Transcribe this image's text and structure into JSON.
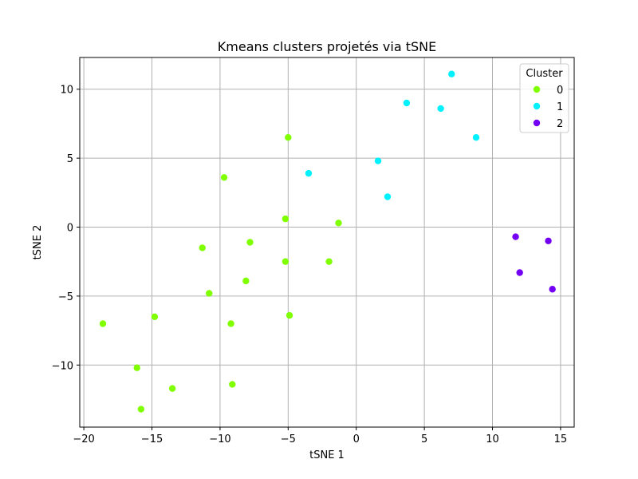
{
  "chart_data": {
    "type": "scatter",
    "title": "Kmeans clusters projetés via tSNE",
    "xlabel": "tSNE 1",
    "ylabel": "tSNE 2",
    "xlim": [
      -20.3,
      16.0
    ],
    "ylim": [
      -14.5,
      12.3
    ],
    "xticks": [
      -20,
      -15,
      -10,
      -5,
      0,
      5,
      10,
      15
    ],
    "yticks": [
      -10,
      -5,
      0,
      5,
      10
    ],
    "grid": true,
    "legend": {
      "title": "Cluster",
      "placement": "top-right"
    },
    "series": [
      {
        "name": "0",
        "color": "#80ff00",
        "points": [
          [
            -5.0,
            6.5
          ],
          [
            -9.7,
            3.6
          ],
          [
            -5.2,
            0.6
          ],
          [
            -1.3,
            0.3
          ],
          [
            -7.8,
            -1.1
          ],
          [
            -11.3,
            -1.5
          ],
          [
            -5.2,
            -2.5
          ],
          [
            -2.0,
            -2.5
          ],
          [
            -8.1,
            -3.9
          ],
          [
            -10.8,
            -4.8
          ],
          [
            -14.8,
            -6.5
          ],
          [
            -4.9,
            -6.4
          ],
          [
            -9.2,
            -7.0
          ],
          [
            -18.6,
            -7.0
          ],
          [
            -16.1,
            -10.2
          ],
          [
            -13.5,
            -11.7
          ],
          [
            -9.1,
            -11.4
          ],
          [
            -15.8,
            -13.2
          ]
        ]
      },
      {
        "name": "1",
        "color": "#00f2ff",
        "points": [
          [
            7.0,
            11.1
          ],
          [
            3.7,
            9.0
          ],
          [
            6.2,
            8.6
          ],
          [
            8.8,
            6.5
          ],
          [
            1.6,
            4.8
          ],
          [
            -3.5,
            3.9
          ],
          [
            2.3,
            2.2
          ]
        ]
      },
      {
        "name": "2",
        "color": "#7300f5",
        "points": [
          [
            11.7,
            -0.7
          ],
          [
            14.1,
            -1.0
          ],
          [
            12.0,
            -3.3
          ],
          [
            14.4,
            -4.5
          ]
        ]
      }
    ]
  }
}
